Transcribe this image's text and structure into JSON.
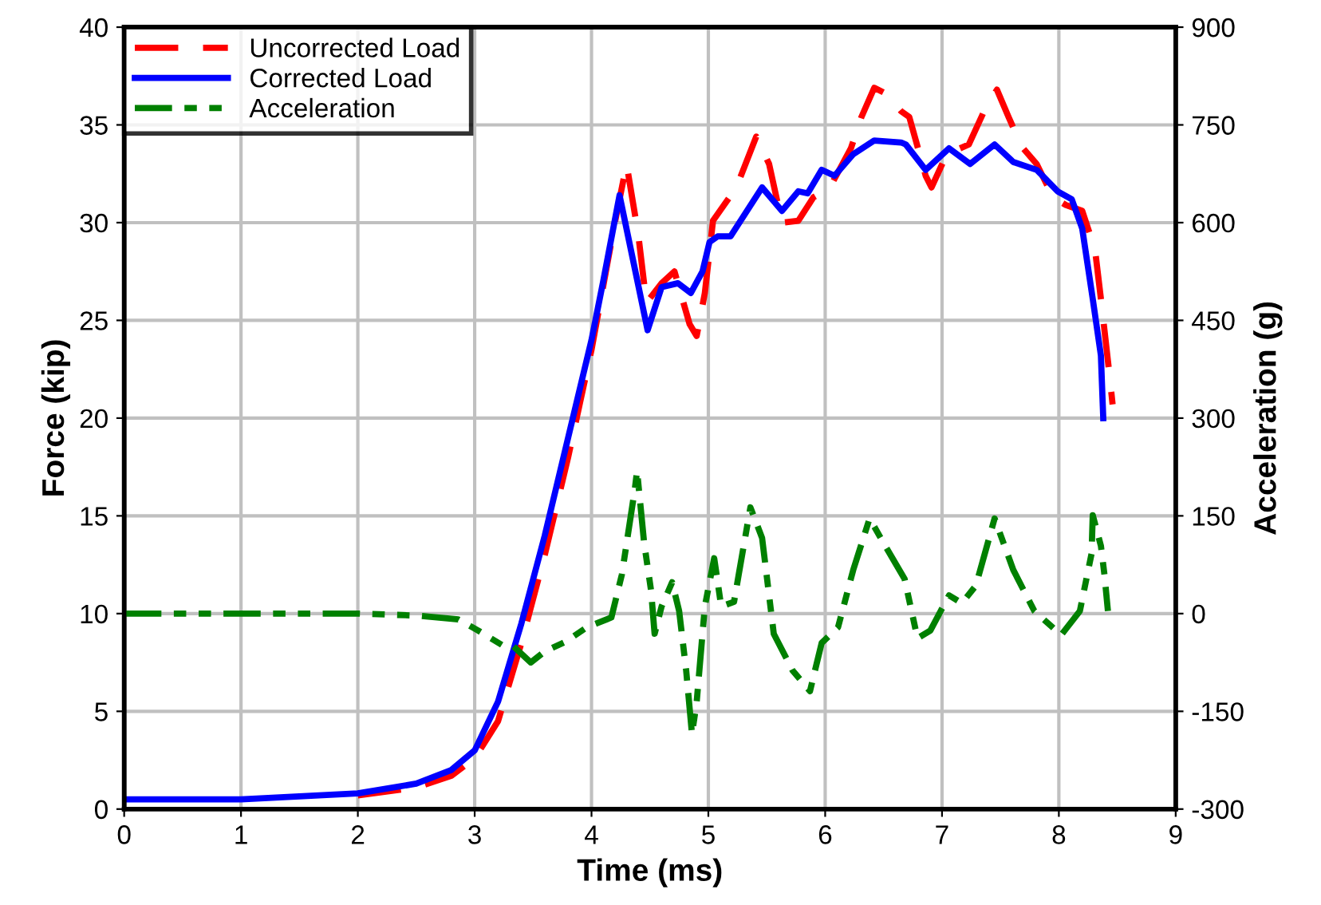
{
  "chart_data": {
    "type": "line",
    "xlabel": "Time (ms)",
    "ylabel": "Force (kip)",
    "y2label": "Acceleration (g)",
    "xlim": [
      0,
      9
    ],
    "xticks": [
      0,
      1,
      2,
      3,
      4,
      5,
      6,
      7,
      8,
      9
    ],
    "ylim": [
      0,
      40
    ],
    "yticks": [
      0,
      5,
      10,
      15,
      20,
      25,
      30,
      35,
      40
    ],
    "y2lim": [
      -300,
      900
    ],
    "y2ticks": [
      -300,
      -150,
      0,
      150,
      300,
      450,
      600,
      750,
      900
    ],
    "grid": true,
    "legend": "top left",
    "marker": "none",
    "series": [
      {
        "name": "Uncorrected Load",
        "color": "#ff0000",
        "line_style": "dashed",
        "x": [
          2,
          2.5,
          2.8,
          3.0,
          3.2,
          3.4,
          3.6,
          3.8,
          4.0,
          4.2,
          4.3,
          4.4,
          4.47,
          4.6,
          4.71,
          4.84,
          4.9,
          4.97,
          5.04,
          5.24,
          5.41,
          5.52,
          5.63,
          5.77,
          5.9,
          6.04,
          6.22,
          6.31,
          6.42,
          6.52,
          6.65,
          6.72,
          6.86,
          6.91,
          7.04,
          7.23,
          7.36,
          7.47,
          7.57,
          7.68,
          7.81,
          7.95,
          8.06,
          8.2,
          8.31,
          8.36,
          8.43,
          8.46
        ],
        "values": [
          0.7,
          1.1,
          1.7,
          2.6,
          4.5,
          8.5,
          13,
          18,
          23.5,
          30,
          33.0,
          29.4,
          25.9,
          26.9,
          27.5,
          24.8,
          24.2,
          26.4,
          30.1,
          31.8,
          34.4,
          33.0,
          30.0,
          30.1,
          31.3,
          31.8,
          33.8,
          35.4,
          36.9,
          36.6,
          35.7,
          35.4,
          32.4,
          31.8,
          33.5,
          34.0,
          35.7,
          36.8,
          35.4,
          33.9,
          33.0,
          31.3,
          30.9,
          30.6,
          28.6,
          26.1,
          22.4,
          20.7
        ]
      },
      {
        "name": "Corrected Load",
        "color": "#0000ff",
        "line_style": "solid",
        "x": [
          0,
          1,
          2,
          2.5,
          2.8,
          3.0,
          3.2,
          3.4,
          3.6,
          3.8,
          4.0,
          4.1,
          4.24,
          4.48,
          4.6,
          4.74,
          4.85,
          4.95,
          5.01,
          5.08,
          5.19,
          5.46,
          5.63,
          5.77,
          5.85,
          5.97,
          6.08,
          6.24,
          6.42,
          6.65,
          6.69,
          6.86,
          7.06,
          7.24,
          7.45,
          7.61,
          7.81,
          7.99,
          8.11,
          8.2,
          8.29,
          8.36,
          8.38
        ],
        "values": [
          0.5,
          0.5,
          0.8,
          1.3,
          2,
          3,
          5.5,
          9.5,
          14,
          19,
          24,
          27,
          31.4,
          24.5,
          26.7,
          26.9,
          26.4,
          27.5,
          29,
          29.3,
          29.3,
          31.8,
          30.6,
          31.6,
          31.5,
          32.7,
          32.4,
          33.5,
          34.2,
          34.1,
          34.0,
          32.7,
          33.8,
          33.0,
          34.0,
          33.1,
          32.7,
          31.6,
          31.2,
          29.7,
          26.1,
          23.2,
          20
        ]
      },
      {
        "name": "Acceleration",
        "color": "#008000",
        "line_style": "dotted",
        "axis": "y2",
        "x": [
          0,
          1,
          2,
          2.5,
          2.86,
          3.03,
          3.25,
          3.33,
          3.48,
          3.6,
          3.78,
          3.96,
          4.17,
          4.26,
          4.37,
          4.39,
          4.45,
          4.51,
          4.54,
          4.6,
          4.69,
          4.75,
          4.81,
          4.86,
          4.9,
          4.97,
          5.05,
          5.11,
          5.22,
          5.26,
          5.36,
          5.46,
          5.56,
          5.72,
          5.87,
          5.97,
          6.11,
          6.24,
          6.38,
          6.52,
          6.68,
          6.79,
          6.9,
          7.06,
          7.17,
          7.29,
          7.45,
          7.61,
          7.79,
          8.02,
          8.18,
          8.28,
          8.29,
          8.36,
          8.39,
          8.42
        ],
        "values": [
          0,
          0,
          0,
          -3,
          -9,
          -26,
          -50,
          -50,
          -75,
          -58,
          -43,
          -21,
          -6,
          60,
          190,
          219,
          109,
          35,
          -31,
          11,
          48,
          4,
          -87,
          -185,
          -136,
          11,
          85,
          11,
          18,
          60,
          163,
          116,
          -31,
          -87,
          -119,
          -45,
          -21,
          67,
          146,
          102,
          53,
          -38,
          -26,
          28,
          16,
          43,
          146,
          67,
          4,
          -33,
          4,
          92,
          151,
          104,
          60,
          4
        ]
      }
    ]
  }
}
